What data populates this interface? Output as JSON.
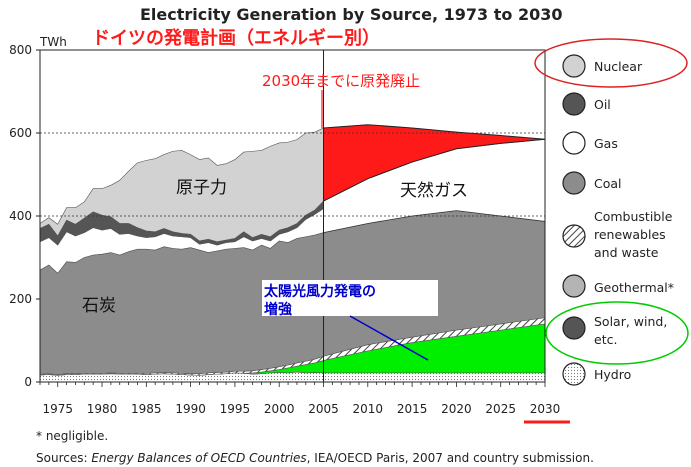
{
  "chart_data": {
    "type": "area",
    "title": "Electricity Generation by Source, 1973 to 2030",
    "subtitle_jp": "ドイツの発電計画（エネルギー別）",
    "yunit": "TWh",
    "ylim": [
      0,
      800
    ],
    "yticks": [
      0,
      200,
      400,
      600,
      800
    ],
    "xlim": [
      1973,
      2030
    ],
    "xticks": [
      1975,
      1980,
      1985,
      1990,
      1995,
      2000,
      2005,
      2010,
      2015,
      2020,
      2025,
      2030
    ],
    "x": [
      1973,
      1974,
      1975,
      1976,
      1977,
      1978,
      1979,
      1980,
      1981,
      1982,
      1983,
      1984,
      1985,
      1986,
      1987,
      1988,
      1989,
      1990,
      1991,
      1992,
      1993,
      1994,
      1995,
      1996,
      1997,
      1998,
      1999,
      2000,
      2001,
      2002,
      2003,
      2004,
      2005
    ],
    "series_cumulative": [
      {
        "name": "Hydro",
        "values": [
          17,
          18,
          16,
          18,
          18,
          19,
          19,
          19,
          20,
          19,
          19,
          19,
          18,
          19,
          20,
          19,
          18,
          17,
          16,
          18,
          19,
          20,
          22,
          21,
          19,
          20,
          22,
          23,
          22,
          24,
          22,
          23,
          22
        ]
      },
      {
        "name": "Solar, wind, etc.",
        "values": [
          17,
          18,
          16,
          18,
          18,
          19,
          19,
          19,
          20,
          19,
          19,
          19,
          18,
          19,
          20,
          19,
          18,
          17,
          16,
          18,
          19,
          20,
          22,
          21,
          22,
          24,
          27,
          30,
          34,
          38,
          42,
          46,
          52
        ]
      },
      {
        "name": "Geothermal*",
        "values": [
          17,
          18,
          16,
          18,
          18,
          19,
          19,
          19,
          20,
          19,
          19,
          19,
          18,
          19,
          20,
          19,
          18,
          17,
          16,
          18,
          19,
          20,
          22,
          21,
          22,
          24,
          27,
          30,
          34,
          38,
          42,
          46,
          52
        ]
      },
      {
        "name": "Combustible renewables and waste",
        "values": [
          19,
          20,
          18,
          20,
          20,
          21,
          21,
          21,
          22,
          21,
          21,
          21,
          21,
          22,
          23,
          22,
          21,
          20,
          20,
          22,
          23,
          24,
          26,
          26,
          27,
          30,
          33,
          37,
          41,
          46,
          50,
          55,
          62
        ]
      },
      {
        "name": "Coal",
        "values": [
          270,
          282,
          262,
          290,
          288,
          300,
          306,
          308,
          312,
          306,
          314,
          320,
          320,
          318,
          326,
          322,
          320,
          324,
          318,
          312,
          316,
          320,
          322,
          324,
          318,
          330,
          322,
          340,
          336,
          346,
          350,
          354,
          360
        ]
      },
      {
        "name": "Gas",
        "values": [
          338,
          348,
          330,
          362,
          352,
          360,
          372,
          366,
          370,
          356,
          358,
          352,
          348,
          350,
          358,
          352,
          350,
          348,
          332,
          336,
          330,
          336,
          338,
          350,
          340,
          346,
          340,
          356,
          362,
          372,
          392,
          404,
          418
        ]
      },
      {
        "name": "Oil",
        "values": [
          370,
          380,
          352,
          390,
          380,
          395,
          410,
          402,
          398,
          382,
          382,
          372,
          364,
          362,
          370,
          362,
          358,
          356,
          340,
          344,
          338,
          342,
          346,
          362,
          348,
          356,
          350,
          366,
          372,
          382,
          402,
          414,
          436
        ]
      },
      {
        "name": "Nuclear",
        "values": [
          382,
          396,
          380,
          420,
          420,
          434,
          466,
          466,
          474,
          486,
          508,
          528,
          534,
          538,
          548,
          556,
          558,
          548,
          536,
          540,
          522,
          526,
          536,
          554,
          556,
          558,
          568,
          576,
          578,
          584,
          600,
          602,
          612
        ]
      }
    ],
    "projection": {
      "x": [
        2005,
        2010,
        2015,
        2020,
        2025,
        2030
      ],
      "hydro": [
        22,
        22,
        22,
        22,
        22,
        22
      ],
      "solar_wind": [
        52,
        75,
        95,
        110,
        125,
        140
      ],
      "combustible": [
        62,
        90,
        108,
        125,
        140,
        155
      ],
      "coal": [
        360,
        382,
        400,
        413,
        400,
        387
      ],
      "gas_top": [
        436,
        490,
        530,
        562,
        575,
        585
      ],
      "nuclear_top": [
        612,
        620,
        612,
        602,
        594,
        585
      ]
    },
    "reference_lines": [
      600,
      400
    ],
    "legend": [
      "Nuclear",
      "Oil",
      "Gas",
      "Coal",
      "Combustible renewables and waste",
      "Geothermal*",
      "Solar, wind, etc.",
      "Hydro"
    ],
    "colors": {
      "nuclear": "#d2d2d2",
      "oil": "#555555",
      "gas": "#ffffff",
      "coal": "#8c8c8c",
      "hydro": "#eeeeee",
      "solar": "#00ee00",
      "phaseout": "#ff1a1a",
      "highlight_circle": "#00cc00",
      "nuclear_circle": "#dd2222"
    }
  },
  "annotations": {
    "phaseout": "2030年までに原発廃止",
    "nuclear_jp": "原子力",
    "gas_jp": "天然ガス",
    "coal_jp": "石炭",
    "solar_jp_line1": "太陽光風力発電の",
    "solar_jp_line2": "増強"
  },
  "legend_labels": {
    "nuclear": "Nuclear",
    "oil": "Oil",
    "gas": "Gas",
    "coal": "Coal",
    "combustible_1": "Combustible",
    "combustible_2": "renewables",
    "combustible_3": "and waste",
    "geothermal": "Geothermal*",
    "solar_1": "Solar, wind,",
    "solar_2": "etc.",
    "hydro": "Hydro"
  },
  "footnotes": {
    "negligible": "* negligible.",
    "sources_prefix": "Sources: ",
    "sources_italic": "Energy Balances of OECD Countries",
    "sources_suffix": ", IEA/OECD Paris, 2007 and country submission."
  }
}
